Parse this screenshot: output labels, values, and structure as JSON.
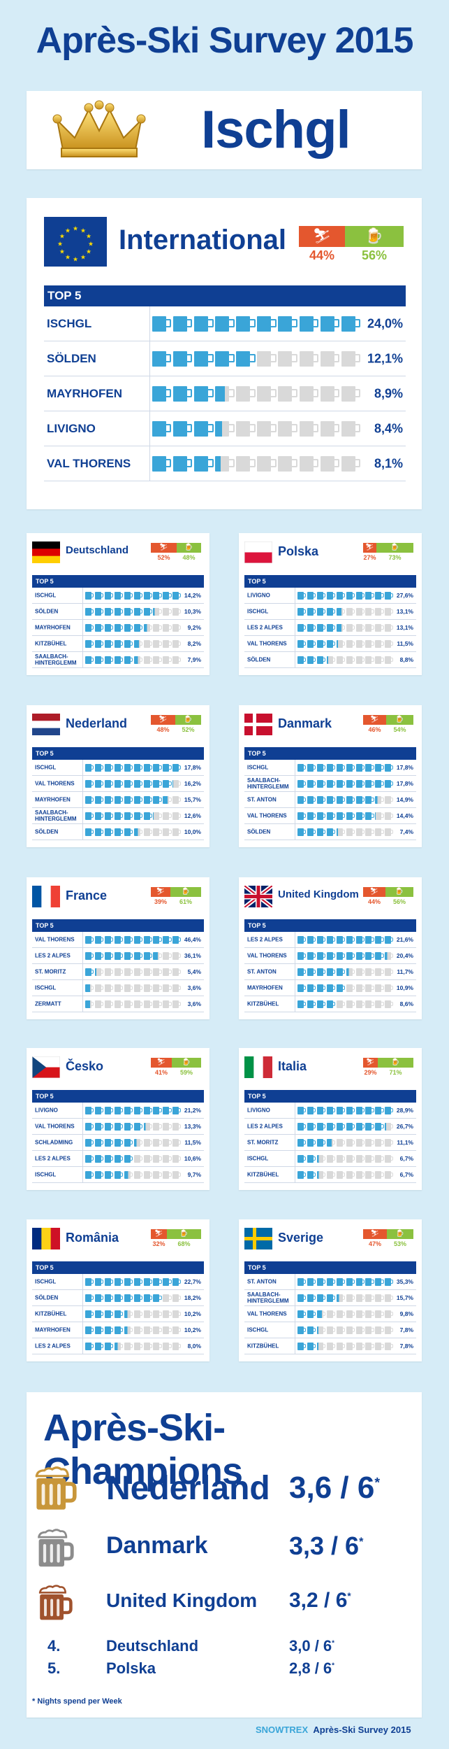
{
  "title": "Après-Ski Survey 2015",
  "winner": "Ischgl",
  "international": {
    "name": "International",
    "ski_pct": "44%",
    "apres_pct": "56%",
    "top_label": "TOP 5",
    "rows": [
      {
        "name": "ISCHGL",
        "value": "24,0%",
        "mugs": 10.0
      },
      {
        "name": "SÖLDEN",
        "value": "12,1%",
        "mugs": 5.0
      },
      {
        "name": "MAYRHOFEN",
        "value": "8,9%",
        "mugs": 3.7
      },
      {
        "name": "LIVIGNO",
        "value": "8,4%",
        "mugs": 3.5
      },
      {
        "name": "VAL THORENS",
        "value": "8,1%",
        "mugs": 3.4
      }
    ]
  },
  "countries": [
    {
      "name": "Deutschland",
      "flag": "de",
      "ski_pct": "52%",
      "apres_pct": "48%",
      "top_label": "TOP 5",
      "rows": [
        {
          "name": "ISCHGL",
          "value": "14,2%",
          "mugs": 10.0
        },
        {
          "name": "SÖLDEN",
          "value": "10,3%",
          "mugs": 7.3
        },
        {
          "name": "MAYRHOFEN",
          "value": "9,2%",
          "mugs": 6.5
        },
        {
          "name": "KITZBÜHEL",
          "value": "8,2%",
          "mugs": 5.8
        },
        {
          "name": "SAALBACH-HINTERGLEMM",
          "value": "7,9%",
          "mugs": 5.6
        }
      ]
    },
    {
      "name": "Polska",
      "flag": "pl",
      "ski_pct": "27%",
      "apres_pct": "73%",
      "top_label": "TOP 5",
      "rows": [
        {
          "name": "LIVIGNO",
          "value": "27,6%",
          "mugs": 10.0
        },
        {
          "name": "ISCHGL",
          "value": "13,1%",
          "mugs": 4.8
        },
        {
          "name": "LES 2 ALPES",
          "value": "13,1%",
          "mugs": 4.8
        },
        {
          "name": "VAL THORENS",
          "value": "11,5%",
          "mugs": 4.2
        },
        {
          "name": "SÖLDEN",
          "value": "8,8%",
          "mugs": 3.2
        }
      ]
    },
    {
      "name": "Nederland",
      "flag": "nl",
      "ski_pct": "48%",
      "apres_pct": "52%",
      "top_label": "TOP 5",
      "rows": [
        {
          "name": "ISCHGL",
          "value": "17,8%",
          "mugs": 10.0
        },
        {
          "name": "VAL THORENS",
          "value": "16,2%",
          "mugs": 9.1
        },
        {
          "name": "MAYRHOFEN",
          "value": "15,7%",
          "mugs": 8.8
        },
        {
          "name": "SAALBACH-HINTERGLEMM",
          "value": "12,6%",
          "mugs": 7.1
        },
        {
          "name": "SÖLDEN",
          "value": "10,0%",
          "mugs": 5.6
        }
      ]
    },
    {
      "name": "Danmark",
      "flag": "dk",
      "ski_pct": "46%",
      "apres_pct": "54%",
      "top_label": "TOP 5",
      "rows": [
        {
          "name": "ISCHGL",
          "value": "17,8%",
          "mugs": 10.0
        },
        {
          "name": "SAALBACH-HINTERGLEMM",
          "value": "17,8%",
          "mugs": 10.0
        },
        {
          "name": "ST. ANTON",
          "value": "14,9%",
          "mugs": 8.4
        },
        {
          "name": "VAL THORENS",
          "value": "14,4%",
          "mugs": 8.1
        },
        {
          "name": "SÖLDEN",
          "value": "7,4%",
          "mugs": 4.2
        }
      ]
    },
    {
      "name": "France",
      "flag": "fr",
      "ski_pct": "39%",
      "apres_pct": "61%",
      "top_label": "TOP 5",
      "rows": [
        {
          "name": "VAL THORENS",
          "value": "46,4%",
          "mugs": 10.0
        },
        {
          "name": "LES 2 ALPES",
          "value": "36,1%",
          "mugs": 7.8
        },
        {
          "name": "ST. MORITZ",
          "value": "5,4%",
          "mugs": 1.2
        },
        {
          "name": "ISCHGL",
          "value": "3,6%",
          "mugs": 0.8
        },
        {
          "name": "ZERMATT",
          "value": "3,6%",
          "mugs": 0.8
        }
      ]
    },
    {
      "name": "United Kingdom",
      "flag": "gb",
      "ski_pct": "44%",
      "apres_pct": "56%",
      "top_label": "TOP 5",
      "rows": [
        {
          "name": "LES 2 ALPES",
          "value": "21,6%",
          "mugs": 10.0
        },
        {
          "name": "VAL THORENS",
          "value": "20,4%",
          "mugs": 9.4
        },
        {
          "name": "ST. ANTON",
          "value": "11,7%",
          "mugs": 5.4
        },
        {
          "name": "MAYRHOFEN",
          "value": "10,9%",
          "mugs": 5.0
        },
        {
          "name": "KITZBÜHEL",
          "value": "8,6%",
          "mugs": 4.0
        }
      ]
    },
    {
      "name": "Česko",
      "flag": "cz",
      "ski_pct": "41%",
      "apres_pct": "59%",
      "top_label": "TOP 5",
      "rows": [
        {
          "name": "LIVIGNO",
          "value": "21,2%",
          "mugs": 10.0
        },
        {
          "name": "VAL THORENS",
          "value": "13,3%",
          "mugs": 6.3
        },
        {
          "name": "SCHLADMING",
          "value": "11,5%",
          "mugs": 5.4
        },
        {
          "name": "LES 2 ALPES",
          "value": "10,6%",
          "mugs": 5.0
        },
        {
          "name": "ISCHGL",
          "value": "9,7%",
          "mugs": 4.6
        }
      ]
    },
    {
      "name": "Italia",
      "flag": "it",
      "ski_pct": "29%",
      "apres_pct": "71%",
      "top_label": "TOP 5",
      "rows": [
        {
          "name": "LIVIGNO",
          "value": "28,9%",
          "mugs": 10.0
        },
        {
          "name": "LES 2 ALPES",
          "value": "26,7%",
          "mugs": 9.2
        },
        {
          "name": "ST. MORITZ",
          "value": "11,1%",
          "mugs": 3.8
        },
        {
          "name": "ISCHGL",
          "value": "6,7%",
          "mugs": 2.3
        },
        {
          "name": "KITZBÜHEL",
          "value": "6,7%",
          "mugs": 2.3
        }
      ]
    },
    {
      "name": "România",
      "flag": "ro",
      "ski_pct": "32%",
      "apres_pct": "68%",
      "top_label": "TOP 5",
      "rows": [
        {
          "name": "ISCHGL",
          "value": "22,7%",
          "mugs": 10.0
        },
        {
          "name": "SÖLDEN",
          "value": "18,2%",
          "mugs": 8.0
        },
        {
          "name": "KITZBÜHEL",
          "value": "10,2%",
          "mugs": 4.5
        },
        {
          "name": "MAYRHOFEN",
          "value": "10,2%",
          "mugs": 4.5
        },
        {
          "name": "LES 2 ALPES",
          "value": "8,0%",
          "mugs": 3.5
        }
      ]
    },
    {
      "name": "Sverige",
      "flag": "se",
      "ski_pct": "47%",
      "apres_pct": "53%",
      "top_label": "TOP 5",
      "rows": [
        {
          "name": "ST. ANTON",
          "value": "35,3%",
          "mugs": 10.0
        },
        {
          "name": "SAALBACH-HINTERGLEMM",
          "value": "15,7%",
          "mugs": 4.4
        },
        {
          "name": "VAL THORENS",
          "value": "9,8%",
          "mugs": 2.8
        },
        {
          "name": "ISCHGL",
          "value": "7,8%",
          "mugs": 2.2
        },
        {
          "name": "KITZBÜHEL",
          "value": "7,8%",
          "mugs": 2.2
        }
      ]
    }
  ],
  "champions": {
    "title": "Après-Ski-Champions",
    "entries": [
      {
        "rank": "",
        "name": "Nederland",
        "score": "3,6 / 6",
        "star": "*",
        "mug_color": "#c8963a"
      },
      {
        "rank": "",
        "name": "Danmark",
        "score": "3,3 / 6",
        "star": "*",
        "mug_color": "#8c8c8c"
      },
      {
        "rank": "",
        "name": "United Kingdom",
        "score": "3,2 / 6",
        "star": "*",
        "mug_color": "#a0522d"
      },
      {
        "rank": "4.",
        "name": "Deutschland",
        "score": "3,0 / 6",
        "star": "*"
      },
      {
        "rank": "5.",
        "name": "Polska",
        "score": "2,8 / 6",
        "star": "*"
      }
    ],
    "footnote": "* Nights spend per Week"
  },
  "footer": {
    "logo": "SNOWTREX",
    "caption": "Après-Ski Survey 2015"
  },
  "colors": {
    "navy": "#0f3f93",
    "ski": "#e4572e",
    "apres": "#8bc13f",
    "beer": "#3aa5d8"
  }
}
